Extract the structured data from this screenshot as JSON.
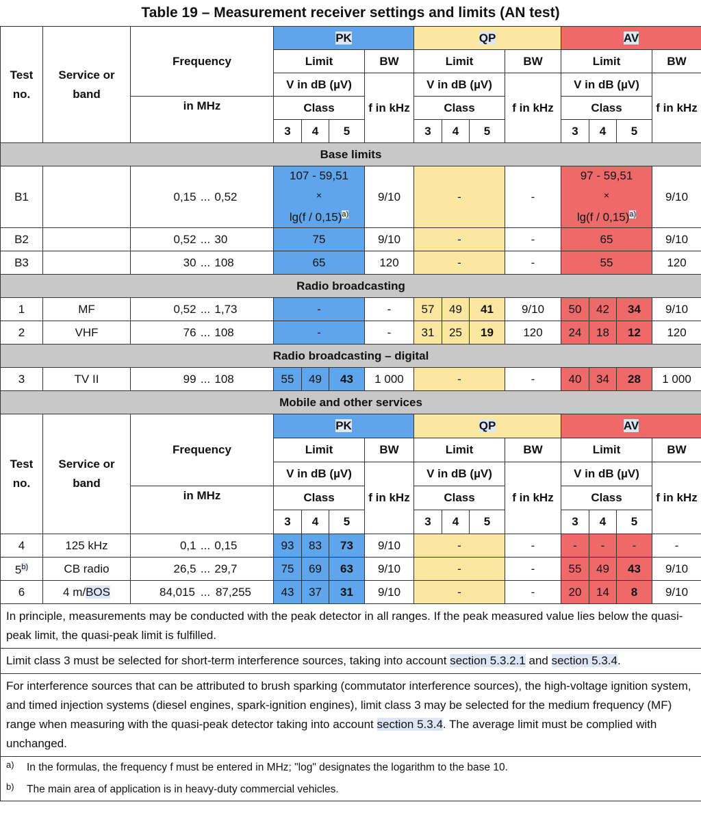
{
  "title": "Table 19 – Measurement receiver settings and limits (AN test)",
  "header": {
    "test_no": "Test no.",
    "service": "Service or band",
    "frequency": "Frequency",
    "in_mhz": "in MHz",
    "pk": "PK",
    "qp": "QP",
    "av": "AV",
    "limit": "Limit",
    "v_in_db": "V in dB (µV)",
    "class": "Class",
    "bw": "BW",
    "f_in_khz": "f in kHz",
    "c3": "3",
    "c4": "4",
    "c5": "5"
  },
  "sections": {
    "base": "Base limits",
    "radio": "Radio broadcasting",
    "digital": "Radio broadcasting – digital",
    "mobile": "Mobile and other services"
  },
  "dots": "...",
  "dash": "-",
  "rows": {
    "b1": {
      "no": "B1",
      "service": "",
      "lo": "0,15",
      "hi": "0,52",
      "pk_l1": "107 - 59,51",
      "pk_l2": "×",
      "pk_l3": "lg(f / 0,15)",
      "pk_sup": "a)",
      "pk_bw": "9/10",
      "qp": "-",
      "qp_bw": "-",
      "av_l1": "97 - 59,51",
      "av_l2": "×",
      "av_l3": "lg(f / 0,15)",
      "av_sup": "a)",
      "av_bw": "9/10"
    },
    "b2": {
      "no": "B2",
      "service": "",
      "lo": "0,52",
      "hi": "30",
      "pk": "75",
      "pk_bw": "9/10",
      "qp": "-",
      "qp_bw": "-",
      "av": "65",
      "av_bw": "9/10"
    },
    "b3": {
      "no": "B3",
      "service": "",
      "lo": "30",
      "hi": "108",
      "pk": "65",
      "pk_bw": "120",
      "qp": "-",
      "qp_bw": "-",
      "av": "55",
      "av_bw": "120"
    },
    "r1": {
      "no": "1",
      "service": "MF",
      "lo": "0,52",
      "hi": "1,73",
      "pk": "-",
      "pk_bw": "-",
      "qp3": "57",
      "qp4": "49",
      "qp5": "41",
      "qp_bw": "9/10",
      "av3": "50",
      "av4": "42",
      "av5": "34",
      "av_bw": "9/10"
    },
    "r2": {
      "no": "2",
      "service": "VHF",
      "lo": "76",
      "hi": "108",
      "pk": "-",
      "pk_bw": "-",
      "qp3": "31",
      "qp4": "25",
      "qp5": "19",
      "qp_bw": "120",
      "av3": "24",
      "av4": "18",
      "av5": "12",
      "av_bw": "120"
    },
    "r3": {
      "no": "3",
      "service": "TV II",
      "lo": "99",
      "hi": "108",
      "pk3": "55",
      "pk4": "49",
      "pk5": "43",
      "pk_bw": "1 000",
      "qp": "-",
      "qp_bw": "-",
      "av3": "40",
      "av4": "34",
      "av5": "28",
      "av_bw": "1 000"
    },
    "r4": {
      "no": "4",
      "service": "125 kHz",
      "lo": "0,1",
      "hi": "0,15",
      "pk3": "93",
      "pk4": "83",
      "pk5": "73",
      "pk_bw": "9/10",
      "qp": "-",
      "qp_bw": "-",
      "av3": "-",
      "av4": "-",
      "av5": "-",
      "av_bw": "-"
    },
    "r5": {
      "no": "5",
      "no_sup": "b)",
      "service": "CB radio",
      "lo": "26,5",
      "hi": "29,7",
      "pk3": "75",
      "pk4": "69",
      "pk5": "63",
      "pk_bw": "9/10",
      "qp": "-",
      "qp_bw": "-",
      "av3": "55",
      "av4": "49",
      "av5": "43",
      "av_bw": "9/10"
    },
    "r6": {
      "no": "6",
      "service_a": "4 m/",
      "service_b": "BOS",
      "lo": "84,015",
      "hi": "87,255",
      "pk3": "43",
      "pk4": "37",
      "pk5": "31",
      "pk_bw": "9/10",
      "qp": "-",
      "qp_bw": "-",
      "av3": "20",
      "av4": "14",
      "av5": "8",
      "av_bw": "9/10"
    }
  },
  "notes": {
    "n1": "In principle, measurements may be conducted with the peak detector in all ranges. If the peak measured value lies below the quasi-peak limit, the quasi-peak limit is fulfilled.",
    "n2_a": "Limit class 3 must be selected for short-term interference sources, taking into account ",
    "n2_ref1": "section 5.3.2.1",
    "n2_b": " and ",
    "n2_ref2": "section 5.3.4",
    "n2_c": ".",
    "n3_a": "For interference sources that can be attributed to brush sparking (commutator interference sources), the high-voltage ignition system, and timed injection systems (diesel engines, spark-ignition engines), limit class 3 may be selected for the medium frequency (MF) range when measuring with the quasi-peak detector taking into account ",
    "n3_ref": "section 5.3.4",
    "n3_b": ". The average limit must be complied with unchanged."
  },
  "footnotes": {
    "a_mark": "a)",
    "a_text": "In the formulas, the frequency f must be entered in MHz; \"log\" designates the logarithm to the base 10.",
    "b_mark": "b)",
    "b_text": "The main area of application is in heavy-duty commercial vehicles."
  }
}
